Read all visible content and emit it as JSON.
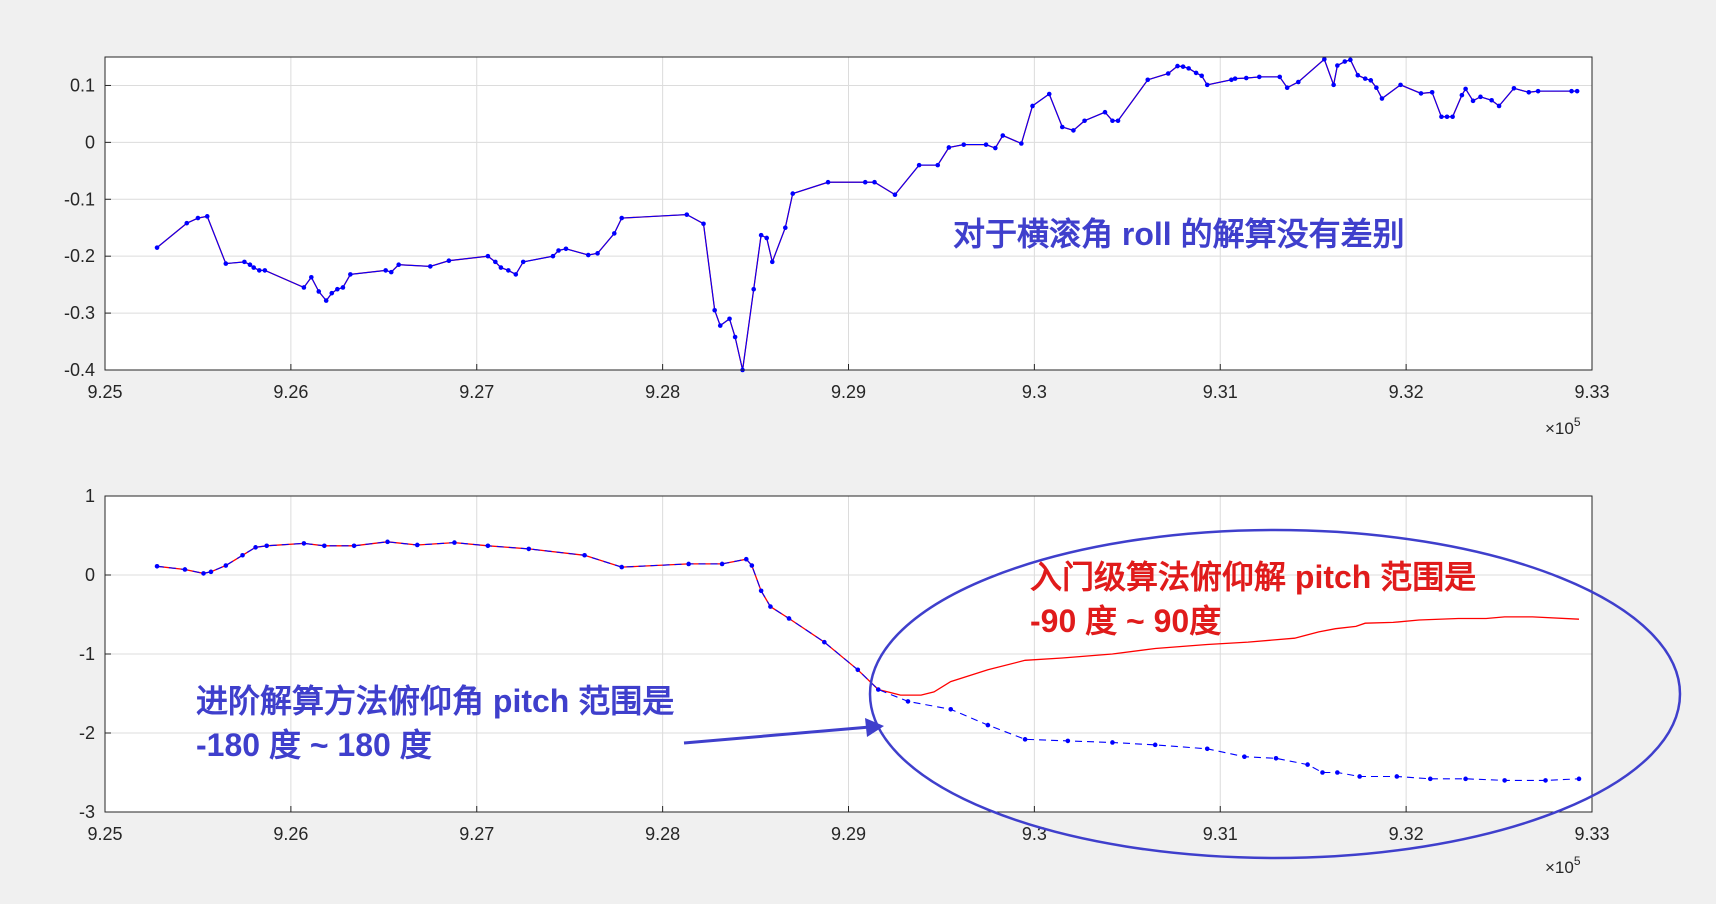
{
  "figure": {
    "background": "#f0f0f0",
    "axes_background": "#ffffff",
    "grid_color": "#dcdcdc",
    "raw_color": "#ff0000",
    "marker_color": "#0000ff",
    "annotation_blue": "#3f3fcc",
    "annotation_red": "#e01b1b"
  },
  "chart_data": [
    {
      "type": "line",
      "title": "",
      "xlabel": "",
      "ylabel": "",
      "x_exponent_label": "×10",
      "x_exponent_power": "5",
      "xlim": [
        9.25,
        9.33
      ],
      "ylim": [
        -0.4,
        0.15
      ],
      "grid": true,
      "xticks": [
        9.25,
        9.26,
        9.27,
        9.28,
        9.29,
        9.3,
        9.31,
        9.32,
        9.33
      ],
      "xtick_labels": [
        "9.25",
        "9.26",
        "9.27",
        "9.28",
        "9.29",
        "9.3",
        "9.31",
        "9.32",
        "9.33"
      ],
      "yticks": [
        0.1,
        0,
        -0.1,
        -0.2,
        -0.3,
        -0.4
      ],
      "ytick_labels": [
        "0.1",
        "0",
        "-0.1",
        "-0.2",
        "-0.3",
        "-0.4"
      ],
      "annotation": {
        "text": "对于横滚角 roll 的解算没有差别",
        "color_key": "annotation_blue"
      },
      "series": [
        {
          "style": "red-line",
          "x": [
            9.2528,
            9.2544,
            9.255,
            9.2555,
            9.2565,
            9.2575,
            9.2578,
            9.258,
            9.2583,
            9.2586,
            9.2607,
            9.2611,
            9.2615,
            9.2619,
            9.2622,
            9.2625,
            9.2628,
            9.2632,
            9.2651,
            9.2654,
            9.2658,
            9.2675,
            9.2685,
            9.2706,
            9.271,
            9.2713,
            9.2717,
            9.2721,
            9.2725,
            9.2741,
            9.2744,
            9.2748,
            9.276,
            9.2765,
            9.2774,
            9.2778,
            9.2813,
            9.2822,
            9.2828,
            9.2831,
            9.2836,
            9.2839,
            9.2843,
            9.2849,
            9.2853,
            9.2856,
            9.2859,
            9.2866,
            9.287,
            9.2889,
            9.2909,
            9.2914,
            9.2925,
            9.2938,
            9.2948,
            9.2954,
            9.2962,
            9.2974,
            9.2979,
            9.2983,
            9.2993,
            9.2999,
            9.3008,
            9.3015,
            9.3021,
            9.3027,
            9.3038,
            9.3042,
            9.3045,
            9.3061,
            9.3072,
            9.3077,
            9.308,
            9.3083,
            9.3087,
            9.309,
            9.3093,
            9.3106,
            9.3108,
            9.3114,
            9.3121,
            9.3132,
            9.3136,
            9.3142,
            9.3156,
            9.3161,
            9.3163,
            9.3167,
            9.317,
            9.3174,
            9.3178,
            9.3181,
            9.3184,
            9.3187,
            9.3197,
            9.3208,
            9.3214,
            9.3219,
            9.3222,
            9.3225,
            9.323,
            9.3232,
            9.3236,
            9.324,
            9.3246,
            9.325,
            9.3258,
            9.3266,
            9.3271,
            9.3289,
            9.3292
          ],
          "y": [
            -0.185,
            -0.142,
            -0.133,
            -0.13,
            -0.213,
            -0.21,
            -0.215,
            -0.22,
            -0.225,
            -0.225,
            -0.255,
            -0.237,
            -0.262,
            -0.278,
            -0.265,
            -0.258,
            -0.255,
            -0.232,
            -0.225,
            -0.228,
            -0.215,
            -0.218,
            -0.208,
            -0.2,
            -0.21,
            -0.22,
            -0.225,
            -0.232,
            -0.21,
            -0.2,
            -0.19,
            -0.187,
            -0.198,
            -0.195,
            -0.16,
            -0.133,
            -0.127,
            -0.143,
            -0.295,
            -0.322,
            -0.31,
            -0.342,
            -0.4,
            -0.258,
            -0.163,
            -0.168,
            -0.21,
            -0.15,
            -0.09,
            -0.07,
            -0.07,
            -0.07,
            -0.092,
            -0.04,
            -0.04,
            -0.009,
            -0.004,
            -0.004,
            -0.01,
            0.012,
            -0.002,
            0.064,
            0.085,
            0.027,
            0.021,
            0.038,
            0.053,
            0.038,
            0.038,
            0.11,
            0.121,
            0.134,
            0.133,
            0.13,
            0.122,
            0.117,
            0.101,
            0.11,
            0.112,
            0.113,
            0.115,
            0.115,
            0.096,
            0.106,
            0.146,
            0.101,
            0.135,
            0.142,
            0.145,
            0.118,
            0.112,
            0.109,
            0.096,
            0.077,
            0.101,
            0.086,
            0.088,
            0.045,
            0.045,
            0.045,
            0.083,
            0.094,
            0.073,
            0.08,
            0.074,
            0.064,
            0.095,
            0.088,
            0.09,
            0.09,
            0.09
          ]
        },
        {
          "style": "blue-markers",
          "x": [
            9.2528,
            9.2544,
            9.255,
            9.2555,
            9.2565,
            9.2575,
            9.2578,
            9.258,
            9.2583,
            9.2586,
            9.2607,
            9.2611,
            9.2615,
            9.2619,
            9.2622,
            9.2625,
            9.2628,
            9.2632,
            9.2651,
            9.2654,
            9.2658,
            9.2675,
            9.2685,
            9.2706,
            9.271,
            9.2713,
            9.2717,
            9.2721,
            9.2725,
            9.2741,
            9.2744,
            9.2748,
            9.276,
            9.2765,
            9.2774,
            9.2778,
            9.2813,
            9.2822,
            9.2828,
            9.2831,
            9.2836,
            9.2839,
            9.2843,
            9.2849,
            9.2853,
            9.2856,
            9.2859,
            9.2866,
            9.287,
            9.2889,
            9.2909,
            9.2914,
            9.2925,
            9.2938,
            9.2948,
            9.2954,
            9.2962,
            9.2974,
            9.2979,
            9.2983,
            9.2993,
            9.2999,
            9.3008,
            9.3015,
            9.3021,
            9.3027,
            9.3038,
            9.3042,
            9.3045,
            9.3061,
            9.3072,
            9.3077,
            9.308,
            9.3083,
            9.3087,
            9.309,
            9.3093,
            9.3106,
            9.3108,
            9.3114,
            9.3121,
            9.3132,
            9.3136,
            9.3142,
            9.3156,
            9.3161,
            9.3163,
            9.3167,
            9.317,
            9.3174,
            9.3178,
            9.3181,
            9.3184,
            9.3187,
            9.3197,
            9.3208,
            9.3214,
            9.3219,
            9.3222,
            9.3225,
            9.323,
            9.3232,
            9.3236,
            9.324,
            9.3246,
            9.325,
            9.3258,
            9.3266,
            9.3271,
            9.3289,
            9.3292
          ],
          "y": [
            -0.185,
            -0.142,
            -0.133,
            -0.13,
            -0.213,
            -0.21,
            -0.215,
            -0.22,
            -0.225,
            -0.225,
            -0.255,
            -0.237,
            -0.262,
            -0.278,
            -0.265,
            -0.258,
            -0.255,
            -0.232,
            -0.225,
            -0.228,
            -0.215,
            -0.218,
            -0.208,
            -0.2,
            -0.21,
            -0.22,
            -0.225,
            -0.232,
            -0.21,
            -0.2,
            -0.19,
            -0.187,
            -0.198,
            -0.195,
            -0.16,
            -0.133,
            -0.127,
            -0.143,
            -0.295,
            -0.322,
            -0.31,
            -0.342,
            -0.4,
            -0.258,
            -0.163,
            -0.168,
            -0.21,
            -0.15,
            -0.09,
            -0.07,
            -0.07,
            -0.07,
            -0.092,
            -0.04,
            -0.04,
            -0.009,
            -0.004,
            -0.004,
            -0.01,
            0.012,
            -0.002,
            0.064,
            0.085,
            0.027,
            0.021,
            0.038,
            0.053,
            0.038,
            0.038,
            0.11,
            0.121,
            0.134,
            0.133,
            0.13,
            0.122,
            0.117,
            0.101,
            0.11,
            0.112,
            0.113,
            0.115,
            0.115,
            0.096,
            0.106,
            0.146,
            0.101,
            0.135,
            0.142,
            0.145,
            0.118,
            0.112,
            0.109,
            0.096,
            0.077,
            0.101,
            0.086,
            0.088,
            0.045,
            0.045,
            0.045,
            0.083,
            0.094,
            0.073,
            0.08,
            0.074,
            0.064,
            0.095,
            0.088,
            0.09,
            0.09,
            0.09
          ]
        }
      ]
    },
    {
      "type": "line",
      "title": "",
      "xlabel": "",
      "ylabel": "",
      "x_exponent_label": "×10",
      "x_exponent_power": "5",
      "xlim": [
        9.25,
        9.33
      ],
      "ylim": [
        -3,
        1
      ],
      "grid": true,
      "xticks": [
        9.25,
        9.26,
        9.27,
        9.28,
        9.29,
        9.3,
        9.31,
        9.32,
        9.33
      ],
      "xtick_labels": [
        "9.25",
        "9.26",
        "9.27",
        "9.28",
        "9.29",
        "9.3",
        "9.31",
        "9.32",
        "9.33"
      ],
      "yticks": [
        1,
        0,
        -1,
        -2,
        -3
      ],
      "ytick_labels": [
        "1",
        "0",
        "-1",
        "-2",
        "-3"
      ],
      "annotations": [
        {
          "lines": [
            "入门级算法俯仰解 pitch 范围是",
            "-90 度 ~ 90度"
          ],
          "color_key": "annotation_red"
        },
        {
          "lines": [
            "进阶解算方法俯仰角 pitch 范围是",
            "-180 度 ~ 180 度"
          ],
          "color_key": "annotation_blue"
        }
      ],
      "series": [
        {
          "style": "red-line",
          "x": [
            9.2528,
            9.2543,
            9.2553,
            9.2557,
            9.2565,
            9.2574,
            9.2581,
            9.2587,
            9.2607,
            9.2618,
            9.2634,
            9.2652,
            9.2668,
            9.2688,
            9.2706,
            9.2728,
            9.2758,
            9.2778,
            9.2814,
            9.2832,
            9.2845,
            9.2848,
            9.2853,
            9.2858,
            9.2868,
            9.2887,
            9.2905,
            9.2916,
            9.2928,
            9.2939,
            9.2946,
            9.2955,
            9.2975,
            9.2995,
            9.3015,
            9.3042,
            9.3065,
            9.3093,
            9.3115,
            9.314,
            9.3153,
            9.3162,
            9.3173,
            9.3178,
            9.3193,
            9.3207,
            9.3228,
            9.3243,
            9.3253,
            9.3268,
            9.3293
          ],
          "y": [
            0.11,
            0.07,
            0.02,
            0.04,
            0.12,
            0.25,
            0.35,
            0.37,
            0.4,
            0.37,
            0.37,
            0.42,
            0.38,
            0.41,
            0.37,
            0.33,
            0.25,
            0.1,
            0.14,
            0.14,
            0.2,
            0.12,
            -0.2,
            -0.4,
            -0.55,
            -0.85,
            -1.2,
            -1.45,
            -1.52,
            -1.52,
            -1.48,
            -1.35,
            -1.2,
            -1.08,
            -1.05,
            -1.0,
            -0.93,
            -0.88,
            -0.85,
            -0.8,
            -0.72,
            -0.68,
            -0.65,
            -0.61,
            -0.6,
            -0.57,
            -0.55,
            -0.55,
            -0.53,
            -0.53,
            -0.56
          ]
        },
        {
          "style": "blue-dashed-markers",
          "x": [
            9.2528,
            9.2543,
            9.2553,
            9.2557,
            9.2565,
            9.2574,
            9.2581,
            9.2587,
            9.2607,
            9.2618,
            9.2634,
            9.2652,
            9.2668,
            9.2688,
            9.2706,
            9.2728,
            9.2758,
            9.2778,
            9.2814,
            9.2832,
            9.2845,
            9.2848,
            9.2853,
            9.2858,
            9.2868,
            9.2887,
            9.2905,
            9.2916,
            9.2932,
            9.2955,
            9.2975,
            9.2995,
            9.3018,
            9.3042,
            9.3065,
            9.3093,
            9.3113,
            9.313,
            9.3147,
            9.3155,
            9.3163,
            9.3175,
            9.3195,
            9.3213,
            9.3232,
            9.3253,
            9.3275,
            9.3293
          ],
          "y": [
            0.11,
            0.07,
            0.02,
            0.04,
            0.12,
            0.25,
            0.35,
            0.37,
            0.4,
            0.37,
            0.37,
            0.42,
            0.38,
            0.41,
            0.37,
            0.33,
            0.25,
            0.1,
            0.14,
            0.14,
            0.2,
            0.12,
            -0.2,
            -0.4,
            -0.55,
            -0.85,
            -1.2,
            -1.45,
            -1.6,
            -1.7,
            -1.9,
            -2.08,
            -2.1,
            -2.12,
            -2.15,
            -2.2,
            -2.3,
            -2.32,
            -2.4,
            -2.5,
            -2.5,
            -2.55,
            -2.55,
            -2.58,
            -2.58,
            -2.6,
            -2.6,
            -2.58
          ]
        }
      ]
    }
  ]
}
